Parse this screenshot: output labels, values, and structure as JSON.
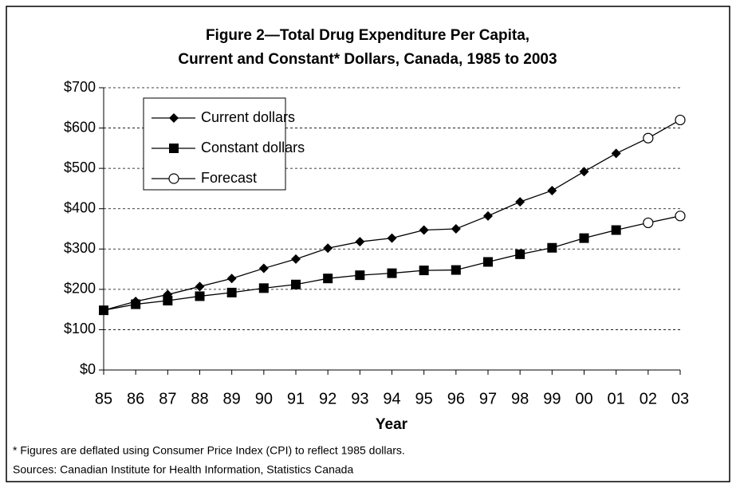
{
  "chart_data": {
    "type": "line",
    "title": [
      "Figure 2—Total Drug Expenditure Per Capita,",
      "Current and Constant* Dollars, Canada, 1985 to 2003"
    ],
    "x_label": "Year",
    "categories": [
      "85",
      "86",
      "87",
      "88",
      "89",
      "90",
      "91",
      "92",
      "93",
      "94",
      "95",
      "96",
      "97",
      "98",
      "99",
      "00",
      "01",
      "02",
      "03"
    ],
    "series": [
      {
        "name": "Current dollars",
        "color": "#000000",
        "marker": "diamond",
        "values": [
          148,
          170,
          187,
          207,
          227,
          252,
          275,
          302,
          318,
          327,
          347,
          350,
          382,
          417,
          445,
          492,
          537,
          575,
          620
        ]
      },
      {
        "name": "Constant dollars",
        "color": "#000000",
        "marker": "square",
        "values": [
          148,
          163,
          172,
          183,
          192,
          203,
          212,
          227,
          235,
          240,
          247,
          248,
          268,
          287,
          303,
          327,
          347,
          365,
          382
        ]
      }
    ],
    "forecast": {
      "name": "Forecast",
      "marker": "open-circle",
      "from": "02"
    },
    "ylim": [
      0,
      700
    ],
    "yticks": [
      {
        "value": 0,
        "label": "$0"
      },
      {
        "value": 100,
        "label": "$100"
      },
      {
        "value": 200,
        "label": "$200"
      },
      {
        "value": 300,
        "label": "$300"
      },
      {
        "value": 400,
        "label": "$400"
      },
      {
        "value": 500,
        "label": "$500"
      },
      {
        "value": 600,
        "label": "$600"
      },
      {
        "value": 700,
        "label": "$700"
      }
    ],
    "grid": true,
    "legend": "upper-left",
    "notes": [
      "* Figures are deflated using Consumer Price Index (CPI) to reflect 1985 dollars.",
      "Sources: Canadian Institute for Health Information, Statistics Canada"
    ]
  }
}
